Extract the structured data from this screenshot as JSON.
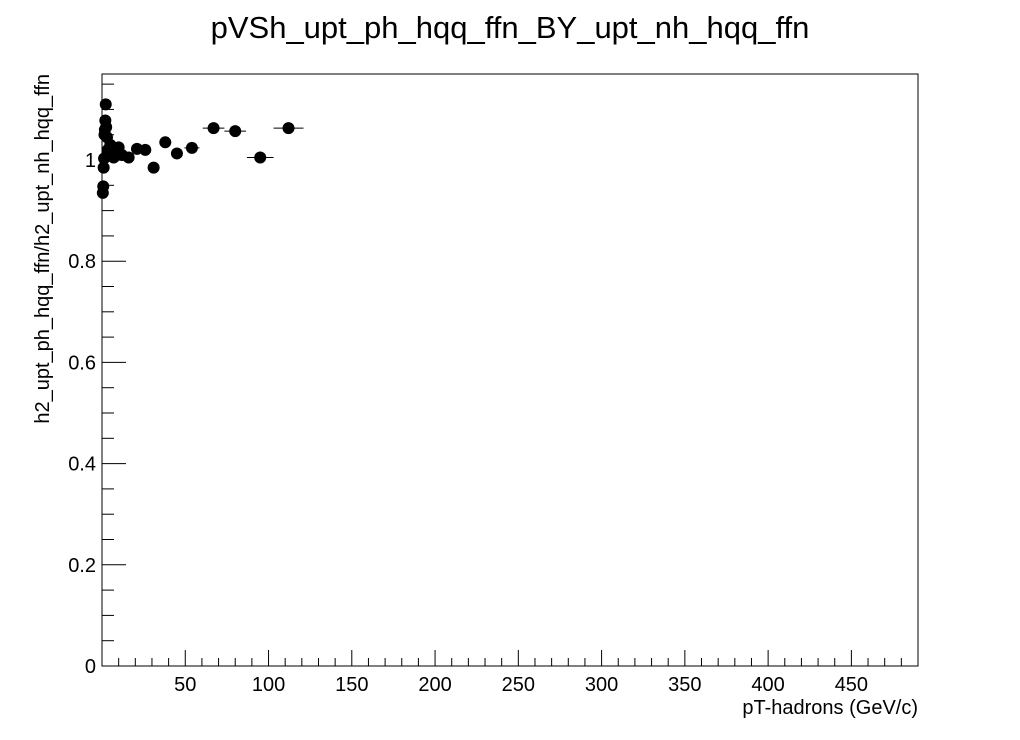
{
  "chart_data": {
    "type": "scatter",
    "title": "pVSh_upt_ph_hqq_ffn_BY_upt_nh_hqq_ffn",
    "xlabel": "pT-hadrons (GeV/c)",
    "ylabel": "h2_upt_ph_hqq_ffn/h2_upt_nh_hqq_ffn",
    "xlim": [
      0,
      490
    ],
    "ylim": [
      0,
      1.17
    ],
    "xticks": [
      50,
      100,
      150,
      200,
      250,
      300,
      350,
      400,
      450
    ],
    "yticks": [
      0,
      0.2,
      0.4,
      0.6,
      0.8,
      1
    ],
    "ytick_labels": [
      "0",
      "0.2",
      "0.4",
      "0.6",
      "0.8",
      "1"
    ],
    "xtick_labels": [
      "50",
      "100",
      "150",
      "200",
      "250",
      "300",
      "350",
      "400",
      "450"
    ],
    "grid": false,
    "marker": "filled-circle",
    "marker_color": "#000000",
    "series": [
      {
        "points": [
          {
            "x": 0.5,
            "y": 0.935,
            "xerr": 0.5
          },
          {
            "x": 0.75,
            "y": 0.948,
            "xerr": 0.25
          },
          {
            "x": 1.0,
            "y": 0.985,
            "xerr": 0.25
          },
          {
            "x": 1.25,
            "y": 1.003,
            "xerr": 0.25
          },
          {
            "x": 1.5,
            "y": 1.05,
            "xerr": 0.25
          },
          {
            "x": 1.75,
            "y": 1.06,
            "xerr": 0.25
          },
          {
            "x": 2.0,
            "y": 1.078,
            "xerr": 0.25
          },
          {
            "x": 2.25,
            "y": 1.11,
            "xerr": 0.25
          },
          {
            "x": 2.5,
            "y": 1.065,
            "xerr": 0.25
          },
          {
            "x": 3.0,
            "y": 1.045,
            "xerr": 0.5
          },
          {
            "x": 3.5,
            "y": 1.02,
            "xerr": 0.5
          },
          {
            "x": 4.0,
            "y": 1.01,
            "xerr": 0.5
          },
          {
            "x": 5.0,
            "y": 1.03,
            "xerr": 0.5
          },
          {
            "x": 6.0,
            "y": 1.02,
            "xerr": 0.5
          },
          {
            "x": 7.0,
            "y": 1.005,
            "xerr": 0.5
          },
          {
            "x": 8.0,
            "y": 1.015,
            "xerr": 0.5
          },
          {
            "x": 9.0,
            "y": 1.01,
            "xerr": 0.5
          },
          {
            "x": 10.0,
            "y": 1.025,
            "xerr": 1.0
          },
          {
            "x": 12.0,
            "y": 1.01,
            "xerr": 1.0
          },
          {
            "x": 16.0,
            "y": 1.005,
            "xerr": 2.0
          },
          {
            "x": 21.0,
            "y": 1.022,
            "xerr": 2.5
          },
          {
            "x": 26.0,
            "y": 1.02,
            "xerr": 2.5
          },
          {
            "x": 31.0,
            "y": 0.985,
            "xerr": 2.5
          },
          {
            "x": 38.0,
            "y": 1.035,
            "xerr": 3.5
          },
          {
            "x": 45.0,
            "y": 1.013,
            "xerr": 3.5
          },
          {
            "x": 54.0,
            "y": 1.024,
            "xerr": 4.5
          },
          {
            "x": 67.0,
            "y": 1.063,
            "xerr": 6.5
          },
          {
            "x": 80.0,
            "y": 1.057,
            "xerr": 6.5
          },
          {
            "x": 95.0,
            "y": 1.005,
            "xerr": 8.0
          },
          {
            "x": 112.0,
            "y": 1.063,
            "xerr": 9.0
          }
        ]
      }
    ]
  }
}
